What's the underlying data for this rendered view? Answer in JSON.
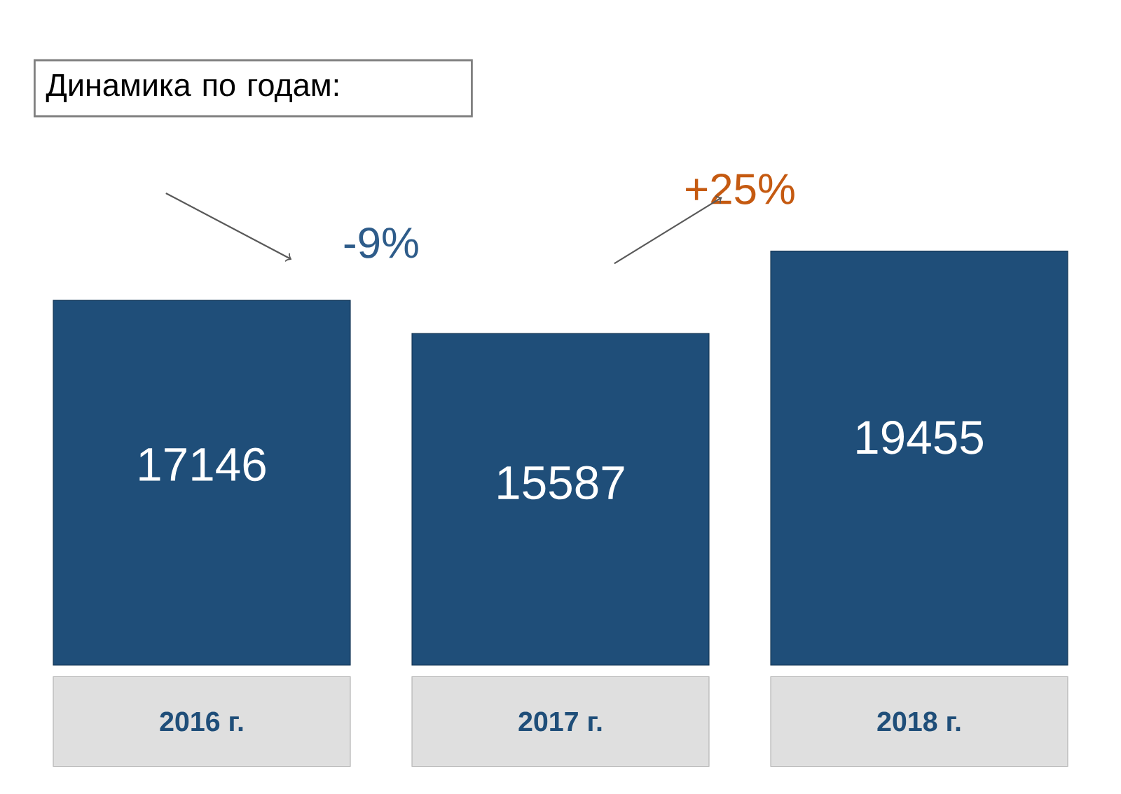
{
  "chart_data": {
    "type": "bar",
    "title": "Динамика по годам:",
    "categories": [
      "2016 г.",
      "2017 г.",
      "2018 г."
    ],
    "values": [
      17146,
      15587,
      19455
    ],
    "color": "#1f4e79",
    "data_labels": true,
    "annotations": [
      "-9%",
      "+25%"
    ]
  }
}
